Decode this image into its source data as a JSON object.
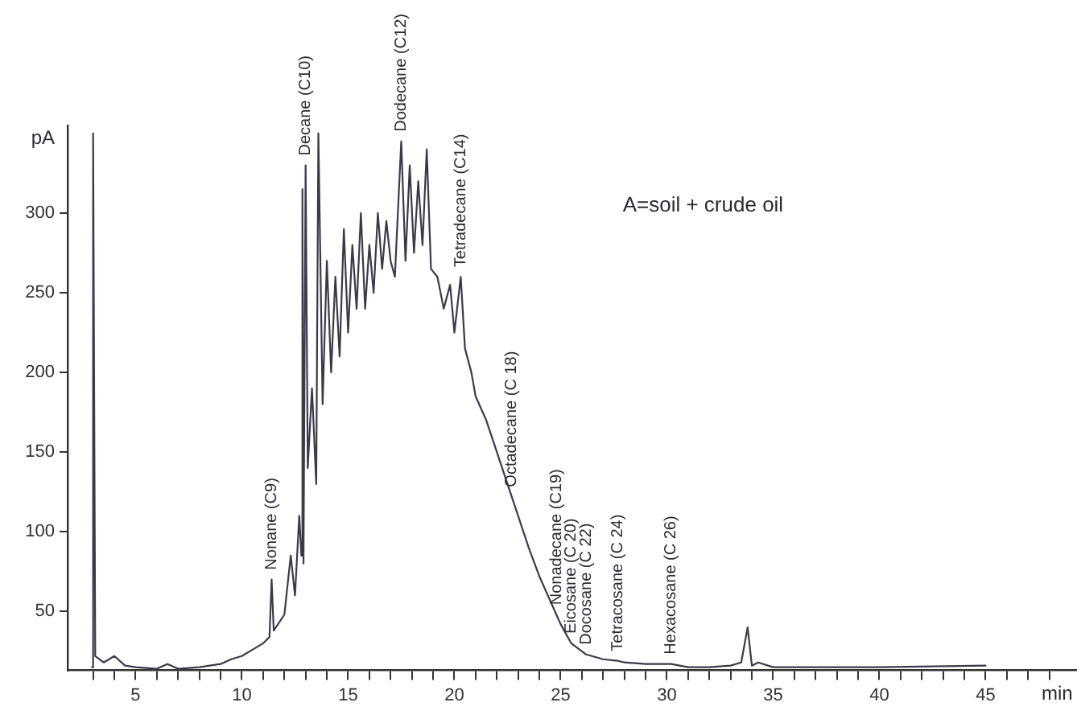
{
  "chart_data": {
    "type": "line",
    "xlabel": "min",
    "ylabel": "pA",
    "color": "#3a3a4a",
    "grid": false,
    "legend": false,
    "marker": "none",
    "line_style": "solid",
    "xlim": [
      1.8,
      49.3
    ],
    "ylim": [
      13,
      355
    ],
    "xticks": [
      {
        "value": 3,
        "label": null
      },
      {
        "value": 4,
        "label": null
      },
      5,
      {
        "value": 6,
        "label": null
      },
      {
        "value": 7,
        "label": null
      },
      {
        "value": 8,
        "label": null
      },
      {
        "value": 9,
        "label": null
      },
      10,
      {
        "value": 11,
        "label": null
      },
      {
        "value": 12,
        "label": null
      },
      {
        "value": 13,
        "label": null
      },
      {
        "value": 14,
        "label": null
      },
      15,
      {
        "value": 16,
        "label": null
      },
      {
        "value": 17,
        "label": null
      },
      {
        "value": 18,
        "label": null
      },
      {
        "value": 19,
        "label": null
      },
      20,
      {
        "value": 21,
        "label": null
      },
      {
        "value": 22,
        "label": null
      },
      {
        "value": 23,
        "label": null
      },
      {
        "value": 24,
        "label": null
      },
      25,
      {
        "value": 26,
        "label": null
      },
      {
        "value": 27,
        "label": null
      },
      {
        "value": 28,
        "label": null
      },
      {
        "value": 29,
        "label": null
      },
      30,
      {
        "value": 31,
        "label": null
      },
      {
        "value": 32,
        "label": null
      },
      {
        "value": 33,
        "label": null
      },
      {
        "value": 34,
        "label": null
      },
      35,
      {
        "value": 36,
        "label": null
      },
      {
        "value": 37,
        "label": null
      },
      {
        "value": 38,
        "label": null
      },
      {
        "value": 39,
        "label": null
      },
      40,
      {
        "value": 41,
        "label": null
      },
      {
        "value": 42,
        "label": null
      },
      {
        "value": 43,
        "label": null
      },
      {
        "value": 44,
        "label": null
      },
      45,
      {
        "value": 46,
        "label": null
      },
      {
        "value": 47,
        "label": null
      },
      {
        "value": 48,
        "label": null
      }
    ],
    "yticks": [
      50,
      100,
      150,
      200,
      250,
      300
    ],
    "x": [
      2.95,
      3.0,
      3.1,
      3.5,
      4.0,
      4.5,
      5.0,
      6.0,
      6.5,
      7.0,
      8.0,
      9.0,
      9.5,
      10.0,
      10.5,
      11.0,
      11.3,
      11.4,
      11.5,
      12.0,
      12.3,
      12.5,
      12.7,
      12.8,
      12.85,
      12.9,
      13.0,
      13.1,
      13.3,
      13.5,
      13.6,
      13.8,
      14.0,
      14.2,
      14.4,
      14.6,
      14.8,
      15.0,
      15.2,
      15.4,
      15.6,
      15.8,
      16.0,
      16.2,
      16.4,
      16.6,
      16.8,
      17.0,
      17.2,
      17.5,
      17.7,
      17.9,
      18.1,
      18.3,
      18.5,
      18.7,
      18.9,
      19.2,
      19.5,
      19.8,
      20.0,
      20.3,
      20.5,
      20.8,
      21.0,
      21.5,
      22.0,
      22.5,
      22.7,
      23.0,
      23.5,
      24.0,
      24.5,
      24.8,
      25.0,
      25.5,
      26.2,
      27.0,
      27.7,
      28.0,
      29.0,
      30.2,
      31.0,
      32.0,
      33.0,
      33.5,
      33.8,
      34.0,
      34.3,
      35.0,
      40.0,
      45.0
    ],
    "values": [
      15,
      350,
      22,
      18,
      22,
      16,
      15,
      14,
      17,
      14,
      15,
      17,
      20,
      22,
      26,
      30,
      34,
      70,
      38,
      48,
      85,
      60,
      110,
      85,
      315,
      80,
      330,
      140,
      190,
      130,
      350,
      180,
      270,
      200,
      260,
      210,
      290,
      225,
      280,
      240,
      300,
      240,
      280,
      250,
      300,
      265,
      295,
      270,
      260,
      345,
      270,
      330,
      275,
      320,
      280,
      340,
      265,
      260,
      240,
      255,
      225,
      260,
      215,
      200,
      185,
      170,
      150,
      130,
      122,
      110,
      90,
      72,
      57,
      48,
      42,
      30,
      23,
      20,
      19,
      18,
      17,
      17,
      15,
      15,
      16,
      18,
      40,
      16,
      18,
      15,
      15,
      16
    ],
    "annotations": [
      {
        "text": "Nonane (C9)",
        "x": 11.4,
        "y": 70
      },
      {
        "text": "Decane (C10)",
        "x": 13.0,
        "y": 330
      },
      {
        "text": "Dodecane (C12)",
        "x": 17.5,
        "y": 345
      },
      {
        "text": "Tetradecane (C14)",
        "x": 20.3,
        "y": 260
      },
      {
        "text": "Octadecane (C 18)",
        "x": 22.7,
        "y": 122
      },
      {
        "text": "Nonadecane (C19)",
        "x": 24.8,
        "y": 48
      },
      {
        "text": "Eicosane (C 20)",
        "x": 25.5,
        "y": 30
      },
      {
        "text": "Docosane (C 22)",
        "x": 26.2,
        "y": 23
      },
      {
        "text": "Tetracosane (C 24)",
        "x": 27.7,
        "y": 19
      },
      {
        "text": "Hexacosane (C 26)",
        "x": 30.2,
        "y": 17
      },
      "A=soil + crude oil"
    ]
  }
}
